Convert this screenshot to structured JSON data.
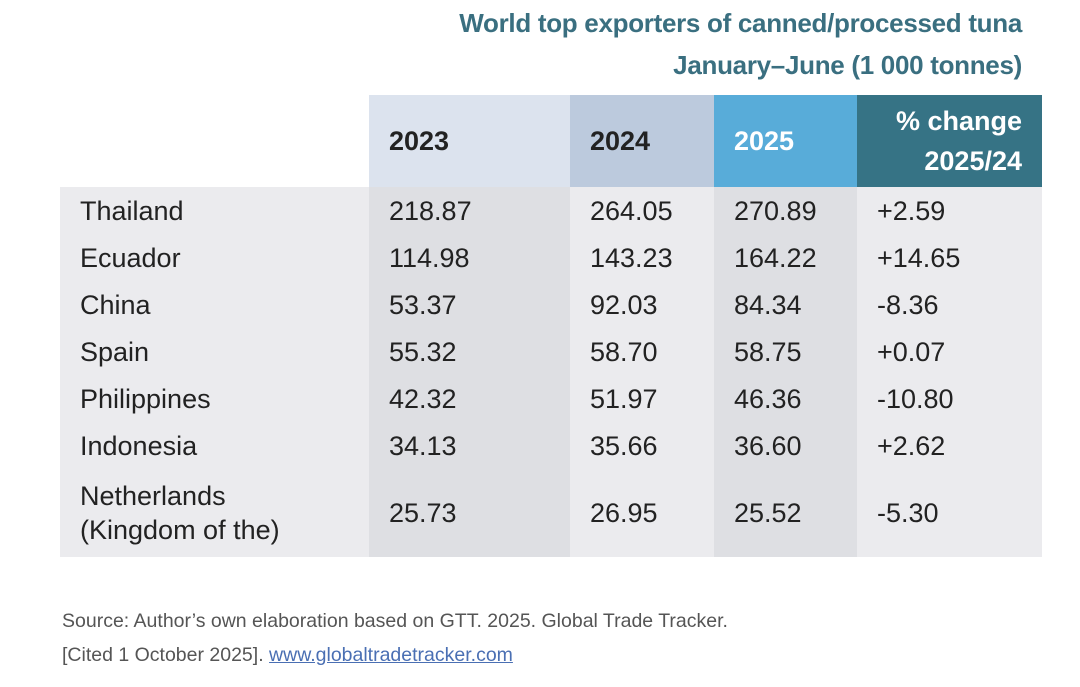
{
  "chart_data": {
    "type": "table",
    "title": "World top exporters of canned/processed tuna",
    "subtitle": "January–June (1 000 tonnes)",
    "columns": [
      "",
      "2023",
      "2024",
      "2025",
      "% change 2025/24"
    ],
    "header_change_line1": "% change",
    "header_change_line2": "2025/24",
    "rows": [
      {
        "country": "Thailand",
        "v2023": "218.87",
        "v2024": "264.05",
        "v2025": "270.89",
        "change": "+2.59"
      },
      {
        "country": "Ecuador",
        "v2023": "114.98",
        "v2024": "143.23",
        "v2025": "164.22",
        "change": "+14.65"
      },
      {
        "country": "China",
        "v2023": "53.37",
        "v2024": "92.03",
        "v2025": "84.34",
        "change": "-8.36"
      },
      {
        "country": "Spain",
        "v2023": "55.32",
        "v2024": "58.70",
        "v2025": "58.75",
        "change": "+0.07"
      },
      {
        "country": "Philippines",
        "v2023": "42.32",
        "v2024": "51.97",
        "v2025": "46.36",
        "change": "-10.80"
      },
      {
        "country": "Indonesia",
        "v2023": "34.13",
        "v2024": "35.66",
        "v2025": "36.60",
        "change": "+2.62"
      },
      {
        "country": "Netherlands",
        "country_line2": "(Kingdom of the)",
        "v2023": "25.73",
        "v2024": "26.95",
        "v2025": "25.52",
        "change": "-5.30"
      }
    ]
  },
  "source": {
    "line1": "Source: Author’s own elaboration based on GTT. 2025. Global Trade Tracker.",
    "line2": "[Cited 1 October 2025]. ",
    "link": "www.globaltradetracker.com"
  },
  "colors": {
    "title": "#3a6f80",
    "h2023": "#dce3ee",
    "h2024": "#bccadd",
    "h2025": "#58acd9",
    "hchange": "#367385"
  }
}
